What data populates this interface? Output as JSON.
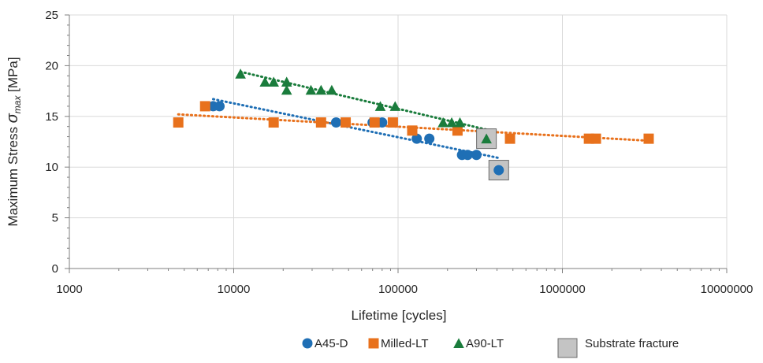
{
  "chart_data": {
    "type": "scatter",
    "x_scale": "log",
    "xlabel": "Lifetime [cycles]",
    "ylabel": {
      "prefix": "Maximum Stress ",
      "symbol": "σ",
      "subscript": "max",
      "suffix": " [MPa]"
    },
    "xlim": [
      1000,
      10000000
    ],
    "ylim": [
      0,
      25
    ],
    "x_ticks": [
      1000,
      10000,
      100000,
      1000000,
      10000000
    ],
    "x_tick_labels": [
      "1000",
      "10000",
      "100000",
      "1000000",
      "10000000"
    ],
    "y_ticks": [
      0,
      5,
      10,
      15,
      20,
      25
    ],
    "y_tick_labels": [
      "0",
      "5",
      "10",
      "15",
      "20",
      "25"
    ],
    "grid": "major",
    "legend_position": "bottom",
    "series": [
      {
        "name": "A45-D",
        "marker": "circle",
        "color": "#1f6fb5",
        "points": [
          {
            "x": 7500,
            "y": 16.0
          },
          {
            "x": 8200,
            "y": 16.0
          },
          {
            "x": 42000,
            "y": 14.4
          },
          {
            "x": 70000,
            "y": 14.4
          },
          {
            "x": 80000,
            "y": 14.4
          },
          {
            "x": 130000,
            "y": 12.8
          },
          {
            "x": 155000,
            "y": 12.8
          },
          {
            "x": 245000,
            "y": 11.2
          },
          {
            "x": 265000,
            "y": 11.2
          },
          {
            "x": 300000,
            "y": 11.2
          },
          {
            "x": 410000,
            "y": 9.7
          }
        ],
        "trend": {
          "x_range": [
            7500,
            410000
          ],
          "y_range": [
            16.7,
            10.9
          ]
        }
      },
      {
        "name": "Milled-LT",
        "marker": "square",
        "color": "#e8711c",
        "points": [
          {
            "x": 4600,
            "y": 14.4
          },
          {
            "x": 6700,
            "y": 16.0
          },
          {
            "x": 17500,
            "y": 14.4
          },
          {
            "x": 34000,
            "y": 14.4
          },
          {
            "x": 48000,
            "y": 14.4
          },
          {
            "x": 72000,
            "y": 14.4
          },
          {
            "x": 93000,
            "y": 14.4
          },
          {
            "x": 122000,
            "y": 13.6
          },
          {
            "x": 230000,
            "y": 13.6
          },
          {
            "x": 480000,
            "y": 12.8
          },
          {
            "x": 1450000,
            "y": 12.8
          },
          {
            "x": 1600000,
            "y": 12.8
          },
          {
            "x": 3350000,
            "y": 12.8
          }
        ],
        "trend": {
          "x_range": [
            4600,
            3350000
          ],
          "y_range": [
            15.2,
            12.6
          ]
        }
      },
      {
        "name": "A90-LT",
        "marker": "triangle",
        "color": "#1a7c3c",
        "points": [
          {
            "x": 11000,
            "y": 19.2
          },
          {
            "x": 15500,
            "y": 18.4
          },
          {
            "x": 17500,
            "y": 18.4
          },
          {
            "x": 21000,
            "y": 18.4
          },
          {
            "x": 21000,
            "y": 17.6
          },
          {
            "x": 29500,
            "y": 17.6
          },
          {
            "x": 34000,
            "y": 17.6
          },
          {
            "x": 39500,
            "y": 17.6
          },
          {
            "x": 78000,
            "y": 16.0
          },
          {
            "x": 96000,
            "y": 16.0
          },
          {
            "x": 188000,
            "y": 14.4
          },
          {
            "x": 212000,
            "y": 14.4
          },
          {
            "x": 238000,
            "y": 14.4
          },
          {
            "x": 345000,
            "y": 12.8
          }
        ],
        "trend": {
          "x_range": [
            11000,
            345000
          ],
          "y_range": [
            19.4,
            13.7
          ]
        }
      }
    ],
    "substrate_fracture": {
      "label": "Substrate fracture",
      "color": "#c4c4c4",
      "points": [
        {
          "x": 345000,
          "y": 12.8
        },
        {
          "x": 410000,
          "y": 9.7
        }
      ]
    }
  }
}
